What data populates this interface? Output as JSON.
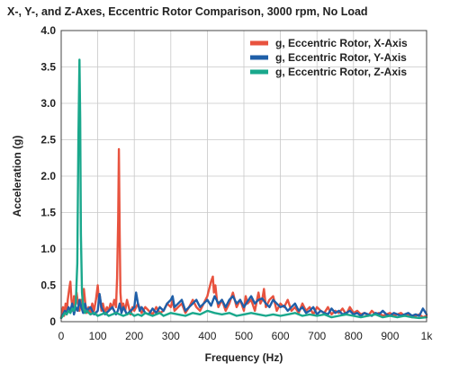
{
  "chart_data": {
    "type": "line",
    "title": "X-, Y-, and Z-Axes, Eccentric Rotor Comparison, 3000 rpm, No Load",
    "xlabel": "Frequency (Hz)",
    "ylabel": "Acceleration (g)",
    "xlim": [
      0,
      1000
    ],
    "ylim": [
      0,
      4.0
    ],
    "xticks": [
      0,
      100,
      200,
      300,
      400,
      500,
      600,
      700,
      800,
      900,
      1000
    ],
    "xtick_labels": [
      "0",
      "100",
      "200",
      "300",
      "400",
      "500",
      "600",
      "700",
      "800",
      "900",
      "1k"
    ],
    "yticks": [
      0,
      0.5,
      1.0,
      1.5,
      2.0,
      2.5,
      3.0,
      3.5,
      4.0
    ],
    "ytick_labels": [
      "0",
      "0.5",
      "1.0",
      "1.5",
      "2.0",
      "2.5",
      "3.0",
      "3.5",
      "4.0"
    ],
    "grid": true,
    "legend_position": "top-right",
    "series": [
      {
        "name": "g, Eccentric Rotor, X-Axis",
        "color": "#e8533f",
        "x": [
          0,
          5,
          8,
          12,
          15,
          18,
          22,
          25,
          28,
          32,
          35,
          38,
          42,
          46,
          50,
          54,
          58,
          62,
          66,
          70,
          75,
          80,
          85,
          90,
          95,
          100,
          103,
          106,
          110,
          114,
          120,
          125,
          130,
          135,
          140,
          145,
          150,
          153,
          156,
          158,
          160,
          162,
          165,
          170,
          175,
          180,
          185,
          190,
          195,
          200,
          210,
          220,
          230,
          240,
          250,
          260,
          270,
          280,
          290,
          300,
          305,
          310,
          320,
          330,
          340,
          350,
          360,
          370,
          380,
          390,
          400,
          405,
          410,
          415,
          418,
          422,
          426,
          430,
          440,
          450,
          460,
          470,
          480,
          490,
          500,
          505,
          510,
          520,
          530,
          540,
          545,
          550,
          555,
          560,
          570,
          580,
          590,
          600,
          610,
          620,
          630,
          640,
          650,
          660,
          670,
          680,
          690,
          700,
          710,
          720,
          730,
          740,
          750,
          760,
          770,
          780,
          790,
          800,
          810,
          820,
          830,
          840,
          850,
          860,
          870,
          880,
          890,
          900,
          910,
          920,
          930,
          940,
          950,
          960,
          970,
          980,
          990,
          1000
        ],
        "y": [
          0.05,
          0.2,
          0.08,
          0.25,
          0.1,
          0.3,
          0.45,
          0.55,
          0.3,
          0.15,
          0.35,
          0.2,
          0.4,
          0.25,
          0.15,
          0.3,
          0.2,
          0.45,
          0.25,
          0.12,
          0.2,
          0.1,
          0.25,
          0.15,
          0.3,
          0.5,
          0.3,
          0.35,
          0.15,
          0.25,
          0.12,
          0.2,
          0.15,
          0.25,
          0.18,
          0.3,
          0.2,
          0.6,
          1.4,
          2.37,
          1.2,
          0.4,
          0.2,
          0.25,
          0.15,
          0.3,
          0.2,
          0.1,
          0.2,
          0.15,
          0.25,
          0.12,
          0.2,
          0.15,
          0.1,
          0.2,
          0.12,
          0.15,
          0.25,
          0.2,
          0.3,
          0.15,
          0.2,
          0.25,
          0.12,
          0.2,
          0.3,
          0.2,
          0.15,
          0.25,
          0.35,
          0.45,
          0.55,
          0.62,
          0.4,
          0.5,
          0.3,
          0.2,
          0.3,
          0.15,
          0.25,
          0.4,
          0.2,
          0.3,
          0.15,
          0.35,
          0.25,
          0.3,
          0.15,
          0.4,
          0.25,
          0.3,
          0.45,
          0.2,
          0.3,
          0.35,
          0.15,
          0.25,
          0.2,
          0.3,
          0.15,
          0.2,
          0.12,
          0.25,
          0.15,
          0.2,
          0.1,
          0.2,
          0.15,
          0.12,
          0.2,
          0.1,
          0.15,
          0.12,
          0.18,
          0.1,
          0.2,
          0.12,
          0.15,
          0.1,
          0.12,
          0.08,
          0.15,
          0.1,
          0.12,
          0.08,
          0.1,
          0.12,
          0.08,
          0.1,
          0.12,
          0.08,
          0.1,
          0.06,
          0.08,
          0.1,
          0.06,
          0.08
        ]
      },
      {
        "name": "g, Eccentric Rotor, Y-Axis",
        "color": "#1f5fa8",
        "x": [
          0,
          5,
          10,
          15,
          20,
          25,
          30,
          35,
          40,
          45,
          50,
          55,
          60,
          65,
          70,
          80,
          90,
          100,
          105,
          110,
          115,
          120,
          130,
          140,
          150,
          155,
          160,
          165,
          170,
          180,
          190,
          200,
          205,
          210,
          215,
          220,
          230,
          240,
          250,
          260,
          270,
          280,
          290,
          300,
          305,
          310,
          320,
          330,
          340,
          350,
          360,
          370,
          380,
          390,
          400,
          410,
          420,
          430,
          440,
          450,
          460,
          470,
          480,
          490,
          500,
          510,
          520,
          530,
          540,
          550,
          560,
          570,
          580,
          590,
          600,
          610,
          620,
          630,
          640,
          650,
          660,
          670,
          680,
          690,
          700,
          710,
          720,
          730,
          740,
          750,
          760,
          770,
          780,
          790,
          800,
          810,
          820,
          830,
          840,
          850,
          860,
          870,
          880,
          890,
          900,
          910,
          920,
          930,
          940,
          950,
          960,
          970,
          980,
          990,
          1000
        ],
        "y": [
          0.05,
          0.1,
          0.15,
          0.12,
          0.2,
          0.15,
          0.25,
          0.1,
          0.2,
          0.15,
          0.3,
          0.2,
          0.12,
          0.25,
          0.15,
          0.2,
          0.1,
          0.15,
          0.38,
          0.2,
          0.15,
          0.1,
          0.15,
          0.2,
          0.1,
          0.15,
          0.25,
          0.12,
          0.2,
          0.1,
          0.15,
          0.2,
          0.4,
          0.25,
          0.15,
          0.2,
          0.12,
          0.1,
          0.18,
          0.12,
          0.2,
          0.15,
          0.25,
          0.3,
          0.35,
          0.2,
          0.25,
          0.3,
          0.15,
          0.2,
          0.25,
          0.3,
          0.2,
          0.25,
          0.3,
          0.22,
          0.35,
          0.25,
          0.3,
          0.2,
          0.3,
          0.35,
          0.25,
          0.3,
          0.2,
          0.28,
          0.35,
          0.25,
          0.3,
          0.32,
          0.25,
          0.2,
          0.3,
          0.25,
          0.2,
          0.22,
          0.15,
          0.2,
          0.25,
          0.15,
          0.2,
          0.12,
          0.15,
          0.2,
          0.1,
          0.15,
          0.12,
          0.1,
          0.18,
          0.12,
          0.15,
          0.1,
          0.12,
          0.15,
          0.1,
          0.12,
          0.08,
          0.12,
          0.1,
          0.08,
          0.12,
          0.1,
          0.15,
          0.1,
          0.08,
          0.12,
          0.1,
          0.08,
          0.1,
          0.12,
          0.08,
          0.1,
          0.08,
          0.18,
          0.1
        ]
      },
      {
        "name": "g, Eccentric Rotor, Z-Axis",
        "color": "#1aa88c",
        "x": [
          0,
          5,
          10,
          15,
          20,
          25,
          30,
          35,
          40,
          44,
          47,
          50,
          52,
          54,
          57,
          60,
          65,
          70,
          80,
          90,
          100,
          110,
          120,
          130,
          140,
          150,
          160,
          170,
          180,
          190,
          200,
          210,
          220,
          230,
          240,
          250,
          260,
          270,
          280,
          290,
          300,
          320,
          340,
          360,
          380,
          400,
          420,
          440,
          460,
          480,
          500,
          520,
          540,
          560,
          580,
          600,
          620,
          640,
          660,
          680,
          700,
          720,
          740,
          760,
          780,
          800,
          820,
          840,
          860,
          880,
          900,
          920,
          940,
          960,
          980,
          1000
        ],
        "y": [
          0.05,
          0.08,
          0.12,
          0.1,
          0.15,
          0.12,
          0.18,
          0.15,
          0.25,
          0.8,
          2.5,
          3.6,
          2.8,
          1.2,
          0.4,
          0.2,
          0.12,
          0.15,
          0.1,
          0.12,
          0.08,
          0.1,
          0.12,
          0.08,
          0.1,
          0.12,
          0.1,
          0.08,
          0.1,
          0.12,
          0.08,
          0.1,
          0.08,
          0.12,
          0.1,
          0.08,
          0.1,
          0.12,
          0.08,
          0.1,
          0.12,
          0.1,
          0.08,
          0.12,
          0.1,
          0.15,
          0.12,
          0.1,
          0.12,
          0.08,
          0.1,
          0.12,
          0.1,
          0.08,
          0.1,
          0.08,
          0.1,
          0.12,
          0.08,
          0.1,
          0.08,
          0.1,
          0.06,
          0.08,
          0.1,
          0.08,
          0.06,
          0.08,
          0.1,
          0.06,
          0.08,
          0.06,
          0.08,
          0.06,
          0.05,
          0.06
        ]
      }
    ]
  }
}
